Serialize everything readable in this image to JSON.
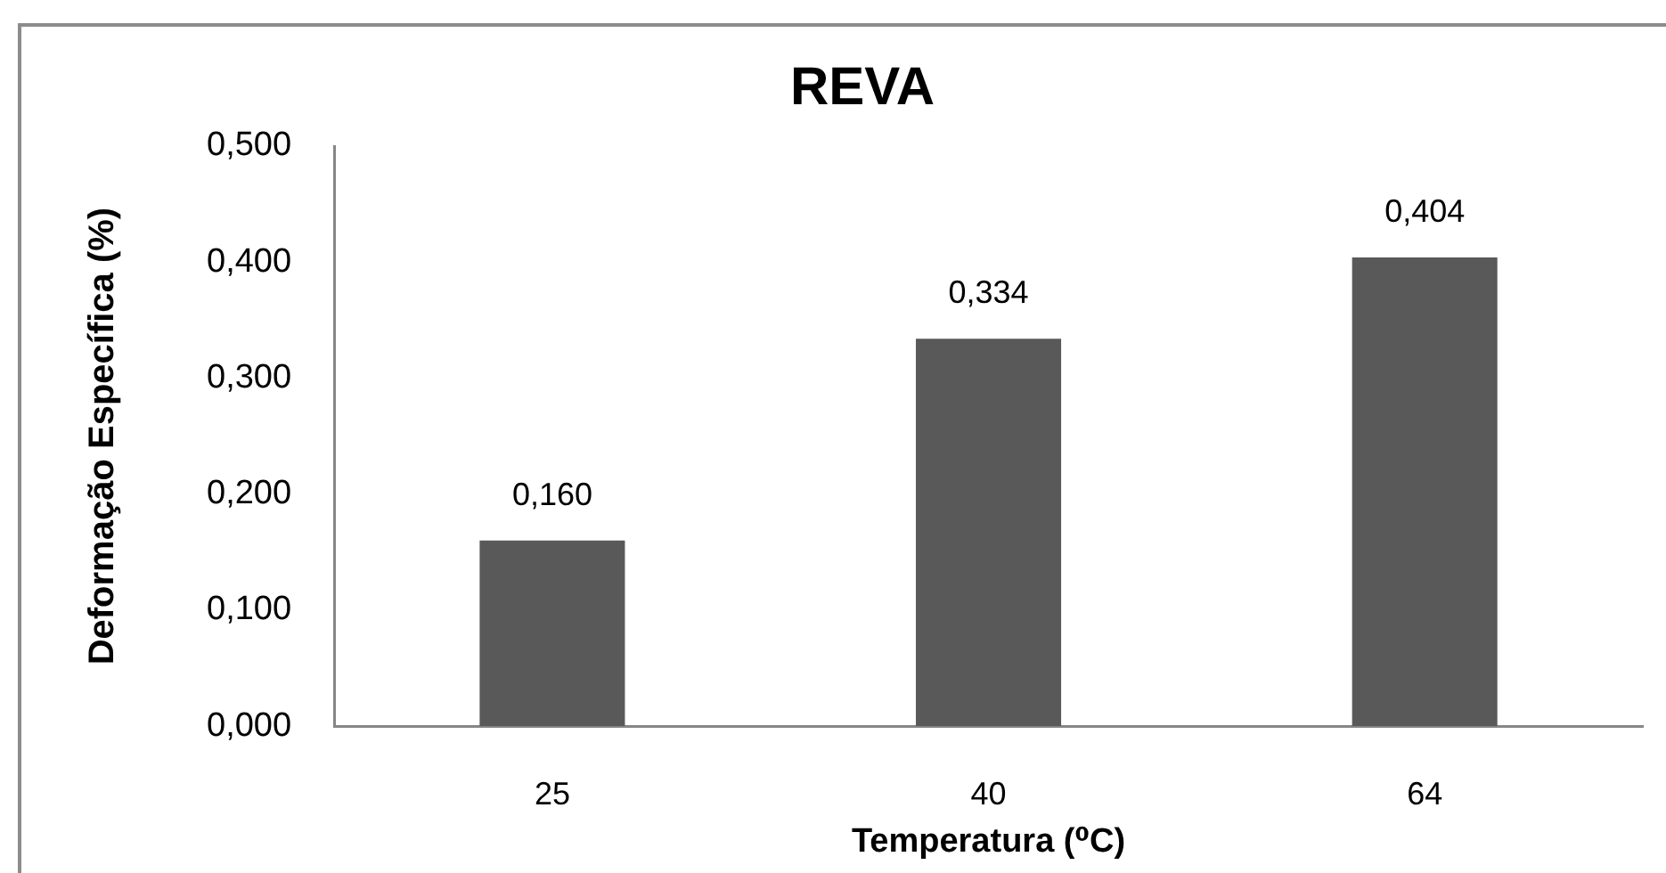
{
  "chart_data": {
    "type": "bar",
    "title": "REVA",
    "xlabel": "Temperatura (⁰C)",
    "ylabel": "Deformação Específica (%)",
    "categories": [
      "25",
      "40",
      "64"
    ],
    "values": [
      0.16,
      0.334,
      0.404
    ],
    "value_labels": [
      "0,160",
      "0,334",
      "0,404"
    ],
    "color": "#595959",
    "ylim": [
      0,
      0.5
    ],
    "yticks": [
      {
        "value": 0,
        "label": "0,000"
      },
      {
        "value": 0.1,
        "label": "0,100"
      },
      {
        "value": 0.2,
        "label": "0,200"
      },
      {
        "value": 0.3,
        "label": "0,300"
      },
      {
        "value": 0.4,
        "label": "0,400"
      },
      {
        "value": 0.5,
        "label": "0,500"
      }
    ],
    "grid": false,
    "legend": false
  }
}
